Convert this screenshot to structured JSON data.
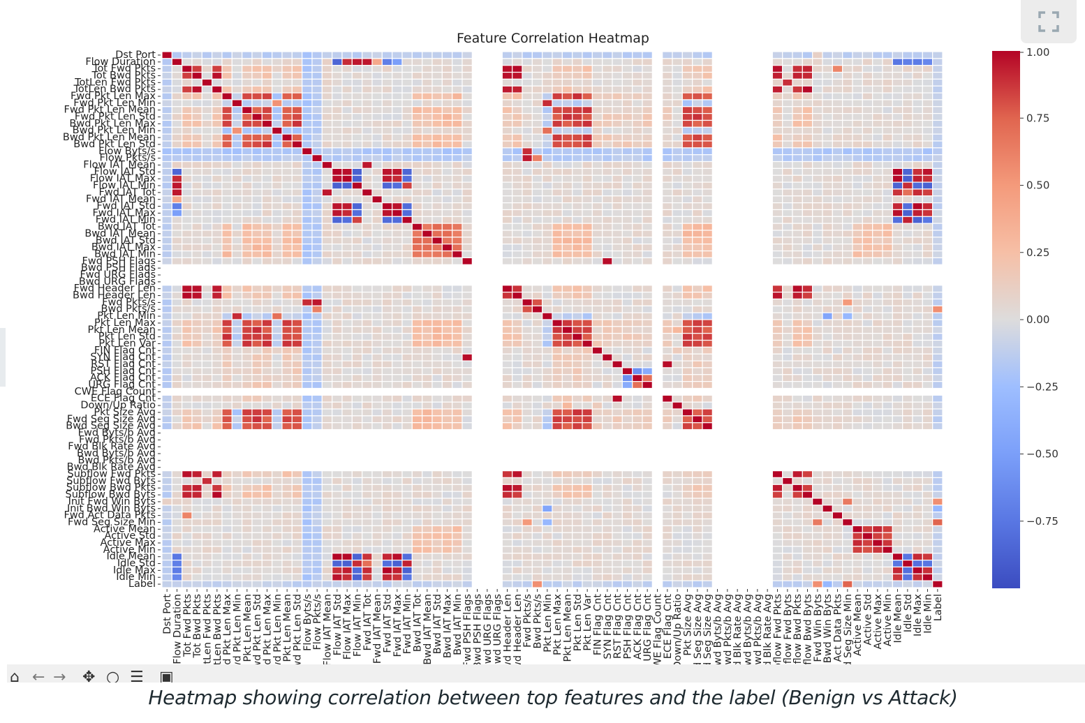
{
  "toolbar": {
    "icons": [
      "home-icon",
      "back-icon",
      "forward-icon",
      "pan-icon",
      "zoom-icon",
      "configure-icon",
      "save-icon"
    ]
  },
  "expand_button": {
    "icon": "expand-icon"
  },
  "caption": "Heatmap showing correlation between top features and the label (Benign vs Attack)",
  "chart_data": {
    "type": "heatmap",
    "title": "Feature Correlation Heatmap",
    "xlabel": "",
    "ylabel": "",
    "colormap": "coolwarm",
    "colorbar": {
      "range": [
        -1.0,
        1.0
      ],
      "ticks": [
        1.0,
        0.75,
        0.5,
        0.25,
        0.0,
        -0.25,
        -0.5,
        -0.75
      ],
      "tick_labels": [
        "1.00",
        "0.75",
        "0.50",
        "0.25",
        "0.00",
        "−0.25",
        "−0.50",
        "−0.75"
      ],
      "placement": "right"
    },
    "features": [
      "Dst Port",
      "Flow Duration",
      "Tot Fwd Pkts",
      "Tot Bwd Pkts",
      "TotLen Fwd Pkts",
      "TotLen Bwd Pkts",
      "Fwd Pkt Len Max",
      "Fwd Pkt Len Min",
      "Fwd Pkt Len Mean",
      "Fwd Pkt Len Std",
      "Bwd Pkt Len Max",
      "Bwd Pkt Len Min",
      "Bwd Pkt Len Mean",
      "Bwd Pkt Len Std",
      "Flow Byts/s",
      "Flow Pkts/s",
      "Flow IAT Mean",
      "Flow IAT Std",
      "Flow IAT Max",
      "Flow IAT Min",
      "Fwd IAT Tot",
      "Fwd IAT Mean",
      "Fwd IAT Std",
      "Fwd IAT Max",
      "Fwd IAT Min",
      "Bwd IAT Tot",
      "Bwd IAT Mean",
      "Bwd IAT Std",
      "Bwd IAT Max",
      "Bwd IAT Min",
      "Fwd PSH Flags",
      "Bwd PSH Flags",
      "Fwd URG Flags",
      "Bwd URG Flags",
      "Fwd Header Len",
      "Bwd Header Len",
      "Fwd Pkts/s",
      "Bwd Pkts/s",
      "Pkt Len Min",
      "Pkt Len Max",
      "Pkt Len Mean",
      "Pkt Len Std",
      "Pkt Len Var",
      "FIN Flag Cnt",
      "SYN Flag Cnt",
      "RST Flag Cnt",
      "PSH Flag Cnt",
      "ACK Flag Cnt",
      "URG Flag Cnt",
      "CWE Flag Count",
      "ECE Flag Cnt",
      "Down/Up Ratio",
      "Pkt Size Avg",
      "Fwd Seg Size Avg",
      "Bwd Seg Size Avg",
      "Fwd Byts/b Avg",
      "Fwd Pkts/b Avg",
      "Fwd Blk Rate Avg",
      "Bwd Byts/b Avg",
      "Bwd Pkts/b Avg",
      "Bwd Blk Rate Avg",
      "Subflow Fwd Pkts",
      "Subflow Fwd Byts",
      "Subflow Bwd Pkts",
      "Subflow Bwd Byts",
      "Init Fwd Win Byts",
      "Init Bwd Win Byts",
      "Fwd Act Data Pkts",
      "Fwd Seg Size Min",
      "Active Mean",
      "Active Std",
      "Active Max",
      "Active Min",
      "Idle Mean",
      "Idle Std",
      "Idle Max",
      "Idle Min",
      "Label"
    ],
    "undefined_features": [
      "Bwd PSH Flags",
      "Fwd URG Flags",
      "Bwd URG Flags",
      "CWE Flag Count",
      "Fwd Byts/b Avg",
      "Fwd Pkts/b Avg",
      "Fwd Blk Rate Avg",
      "Bwd Byts/b Avg",
      "Bwd Pkts/b Avg",
      "Bwd Blk Rate Avg"
    ],
    "default_value": 0.03,
    "column_defaults": {
      "Dst Port": -0.12,
      "Flow Byts/s": -0.18,
      "Flow Pkts/s": -0.15,
      "Label": -0.1
    },
    "groups": {
      "packet_counts": [
        "Tot Fwd Pkts",
        "Tot Bwd Pkts",
        "TotLen Bwd Pkts",
        "Fwd Header Len",
        "Bwd Header Len",
        "Subflow Fwd Pkts",
        "Subflow Bwd Pkts",
        "Subflow Bwd Byts"
      ],
      "fwd_bytes": [
        "TotLen Fwd Pkts",
        "Subflow Fwd Byts"
      ],
      "packet_length": [
        "Fwd Pkt Len Max",
        "Fwd Pkt Len Mean",
        "Fwd Pkt Len Std",
        "Bwd Pkt Len Max",
        "Bwd Pkt Len Mean",
        "Bwd Pkt Len Std",
        "Pkt Len Max",
        "Pkt Len Mean",
        "Pkt Len Std",
        "Pkt Len Var",
        "Pkt Size Avg",
        "Fwd Seg Size Avg",
        "Bwd Seg Size Avg"
      ],
      "packet_min": [
        "Fwd Pkt Len Min",
        "Bwd Pkt Len Min",
        "Pkt Len Min"
      ],
      "iat_pos": [
        "Flow IAT Std",
        "Flow IAT Max",
        "Fwd IAT Std",
        "Fwd IAT Max",
        "Idle Mean",
        "Idle Max",
        "Idle Min"
      ],
      "iat_neg": [
        "Flow IAT Min",
        "Fwd IAT Min",
        "Idle Std"
      ],
      "iat_totals": [
        "Flow Duration",
        "Flow IAT Mean",
        "Fwd IAT Tot",
        "Fwd IAT Mean"
      ],
      "bwd_iat": [
        "Bwd IAT Tot",
        "Bwd IAT Mean",
        "Bwd IAT Std",
        "Bwd IAT Max",
        "Bwd IAT Min"
      ],
      "rates": [
        "Flow Pkts/s",
        "Fwd Pkts/s",
        "Bwd Pkts/s"
      ],
      "active": [
        "Active Mean",
        "Active Std",
        "Active Max",
        "Active Min"
      ],
      "flags": [
        "FIN Flag Cnt",
        "SYN Flag Cnt",
        "RST Flag Cnt",
        "PSH Flag Cnt",
        "ACK Flag Cnt",
        "URG Flag Cnt",
        "ECE Flag Cnt"
      ]
    },
    "group_correlations": [
      {
        "a": "packet_counts",
        "b": "packet_counts",
        "value": 0.92
      },
      {
        "a": "fwd_bytes",
        "b": "fwd_bytes",
        "value": 0.95
      },
      {
        "a": "packet_length",
        "b": "packet_length",
        "value": 0.82
      },
      {
        "a": "packet_length",
        "b": "packet_min",
        "value": -0.15
      },
      {
        "a": "packet_length",
        "b": "packet_counts",
        "value": 0.18
      },
      {
        "a": "iat_pos",
        "b": "iat_pos",
        "value": 0.93
      },
      {
        "a": "iat_neg",
        "b": "iat_neg",
        "value": 0.9
      },
      {
        "a": "iat_pos",
        "b": "iat_neg",
        "value": -0.82
      },
      {
        "a": "iat_totals",
        "b": "iat_totals",
        "value": 0.05
      },
      {
        "a": "bwd_iat",
        "b": "bwd_iat",
        "value": 0.7
      },
      {
        "a": "bwd_iat",
        "b": "packet_length",
        "value": 0.25
      },
      {
        "a": "active",
        "b": "active",
        "value": 0.85
      },
      {
        "a": "active",
        "b": "bwd_iat",
        "value": 0.2
      },
      {
        "a": "rates",
        "b": "rates",
        "value": 0.6
      },
      {
        "a": "packet_min",
        "b": "packet_min",
        "value": 0.55
      },
      {
        "a": "flags",
        "b": "packet_length",
        "value": 0.12
      }
    ],
    "pair_correlations": [
      {
        "a": "Flow Duration",
        "b": "Flow IAT Std",
        "value": -0.85
      },
      {
        "a": "Flow Duration",
        "b": "Flow IAT Max",
        "value": 0.9
      },
      {
        "a": "Flow Duration",
        "b": "Flow IAT Min",
        "value": 0.95
      },
      {
        "a": "Flow Duration",
        "b": "Fwd IAT Tot",
        "value": 0.95
      },
      {
        "a": "Flow Duration",
        "b": "Fwd IAT Mean",
        "value": 0.4
      },
      {
        "a": "Flow Duration",
        "b": "Fwd IAT Std",
        "value": -0.7
      },
      {
        "a": "Flow Duration",
        "b": "Fwd IAT Max",
        "value": -0.5
      },
      {
        "a": "Flow Duration",
        "b": "Idle Mean",
        "value": -0.75
      },
      {
        "a": "Flow Duration",
        "b": "Idle Std",
        "value": -0.7
      },
      {
        "a": "Flow Duration",
        "b": "Idle Max",
        "value": -0.72
      },
      {
        "a": "Flow Duration",
        "b": "Idle Min",
        "value": -0.65
      },
      {
        "a": "Fwd IAT Tot",
        "b": "Flow IAT Mean",
        "value": 0.95
      },
      {
        "a": "Fwd IAT Tot",
        "b": "Idle Mean",
        "value": 0.88
      },
      {
        "a": "Fwd IAT Tot",
        "b": "Idle Max",
        "value": 0.9
      },
      {
        "a": "Fwd IAT Tot",
        "b": "Idle Min",
        "value": 0.85
      },
      {
        "a": "Fwd IAT Tot",
        "b": "Idle Std",
        "value": 0.7
      },
      {
        "a": "Bwd IAT Min",
        "b": "Fwd PSH Flags",
        "value": 0.0
      },
      {
        "a": "Fwd PSH Flags",
        "b": "SYN Flag Cnt",
        "value": 0.98
      },
      {
        "a": "Flow Pkts/s",
        "b": "Fwd Pkts/s",
        "value": 0.95
      },
      {
        "a": "Fwd Pkts/s",
        "b": "Bwd Pkts/s",
        "value": 0.8
      },
      {
        "a": "Flow Byts/s",
        "b": "Fwd Pkts/s",
        "value": 0.9
      },
      {
        "a": "Fwd Pkt Len Min",
        "b": "Pkt Len Min",
        "value": 0.9
      },
      {
        "a": "Bwd Pkt Len Min",
        "b": "Pkt Len Min",
        "value": 0.7
      },
      {
        "a": "RST Flag Cnt",
        "b": "ECE Flag Cnt",
        "value": 0.98
      },
      {
        "a": "FIN Flag Cnt",
        "b": "Down/Up Ratio",
        "value": 0.15
      },
      {
        "a": "PSH Flag Cnt",
        "b": "ACK Flag Cnt",
        "value": -0.6
      },
      {
        "a": "PSH Flag Cnt",
        "b": "URG Flag Cnt",
        "value": -0.4
      },
      {
        "a": "ACK Flag Cnt",
        "b": "URG Flag Cnt",
        "value": 0.7
      },
      {
        "a": "URG Flag Cnt",
        "b": "Fwd Pkt Len Std",
        "value": 0.2
      },
      {
        "a": "Init Fwd Win Byts",
        "b": "Fwd Seg Size Min",
        "value": 0.65
      },
      {
        "a": "Init Fwd Win Byts",
        "b": "Label",
        "value": 0.55
      },
      {
        "a": "Init Bwd Win Byts",
        "b": "Label",
        "value": -0.3
      },
      {
        "a": "Fwd Seg Size Min",
        "b": "Label",
        "value": 0.75
      },
      {
        "a": "Fwd Act Data Pkts",
        "b": "Tot Fwd Pkts",
        "value": 0.6
      },
      {
        "a": "Init Bwd Win Byts",
        "b": "Pkt Len Min",
        "value": -0.45
      },
      {
        "a": "Fwd Seg Size Min",
        "b": "Pkt Len Min",
        "value": -0.3
      },
      {
        "a": "Fwd Seg Size Min",
        "b": "Fwd Pkts/s",
        "value": 0.5
      },
      {
        "a": "Bwd Pkts/s",
        "b": "Label",
        "value": 0.55
      },
      {
        "a": "Down/Up Ratio",
        "b": "Pkt Len Mean",
        "value": 0.3
      },
      {
        "a": "Dst Port",
        "b": "Init Fwd Win Byts",
        "value": 0.1
      }
    ]
  }
}
